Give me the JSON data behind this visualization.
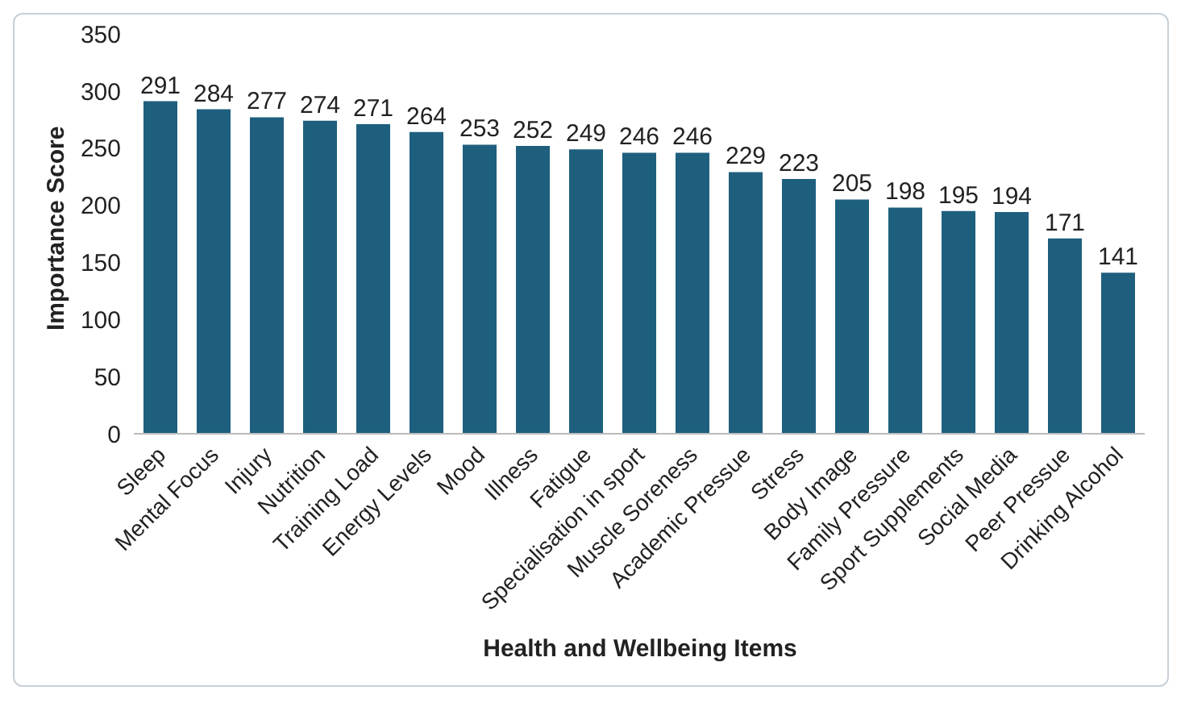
{
  "chart_data": {
    "type": "bar",
    "xlabel": "Health and Wellbeing Items",
    "ylabel": "Importance Score",
    "categories": [
      "Sleep",
      "Mental Focus",
      "Injury",
      "Nutrition",
      "Training Load",
      "Energy Levels",
      "Mood",
      "Illness",
      "Fatigue",
      "Specialisation in sport",
      "Muscle Soreness",
      "Academic Pressue",
      "Stress",
      "Body Image",
      "Family Pressure",
      "Sport Supplements",
      "Social Media",
      "Peer Pressue",
      "Drinking Alcohol"
    ],
    "values": [
      291,
      284,
      277,
      274,
      271,
      264,
      253,
      252,
      249,
      246,
      246,
      229,
      223,
      205,
      198,
      195,
      194,
      171,
      141
    ],
    "color": "#1e5f7e",
    "ylim": [
      0,
      350
    ],
    "yticks": [
      0,
      50,
      100,
      150,
      200,
      250,
      300,
      350
    ],
    "grid": false,
    "data_labels": true
  }
}
